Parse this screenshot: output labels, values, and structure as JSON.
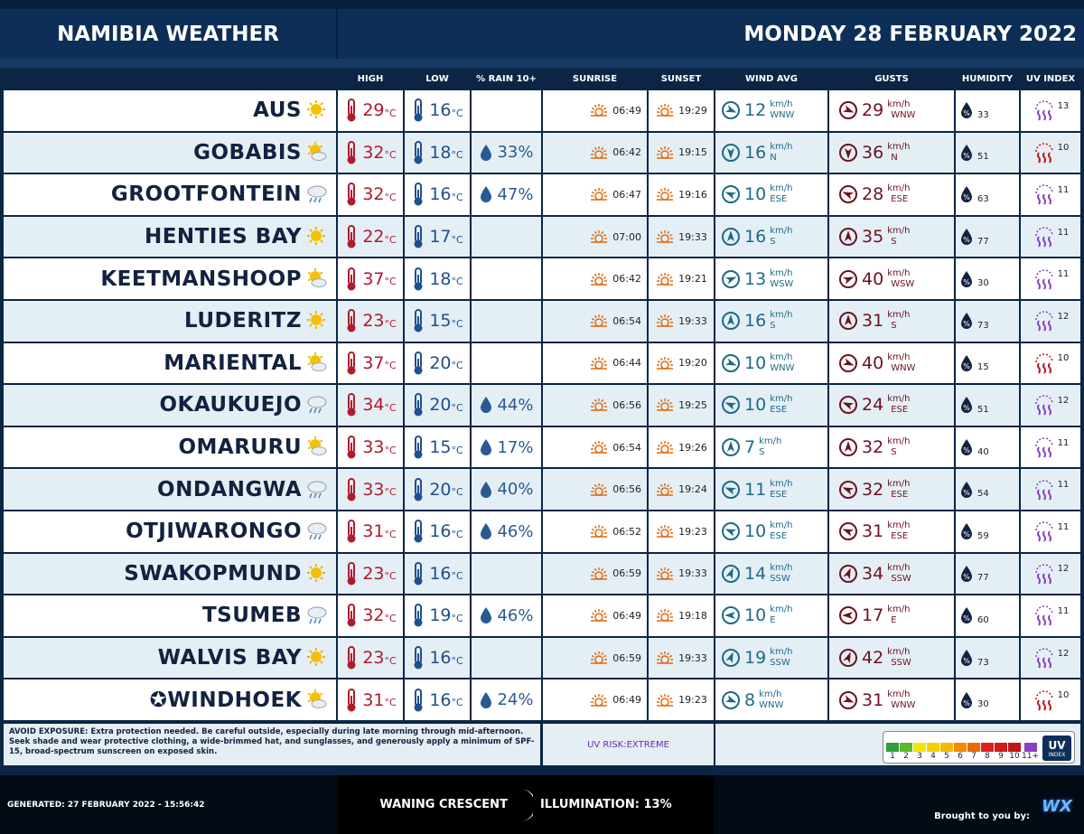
{
  "header": {
    "title": "NAMIBIA WEATHER",
    "date": "MONDAY 28 FEBRUARY 2022"
  },
  "units": {
    "temp": "°C",
    "speed": "km/h",
    "rain": "%"
  },
  "table": {
    "columns": [
      "HIGH",
      "LOW",
      "% RAIN 10+",
      "SUNRISE",
      "SUNSET",
      "WIND AVG",
      "GUSTS",
      "HUMIDITY",
      "UV INDEX"
    ],
    "rows": [
      {
        "city": "AUS",
        "icon": "sun",
        "high": 29,
        "low": 16,
        "sunrise": "06:49",
        "sunset": "19:29",
        "wind": 12,
        "wind_dir": "WNW",
        "gust": 29,
        "gust_dir": "WNW",
        "humidity": 33,
        "uv": 13
      },
      {
        "city": "GOBABIS",
        "icon": "partly",
        "high": 32,
        "low": 18,
        "rain": 33,
        "sunrise": "06:42",
        "sunset": "19:15",
        "wind": 16,
        "wind_dir": "N",
        "gust": 36,
        "gust_dir": "N",
        "humidity": 51,
        "uv": 10
      },
      {
        "city": "GROOTFONTEIN",
        "icon": "rain",
        "high": 32,
        "low": 16,
        "rain": 47,
        "sunrise": "06:47",
        "sunset": "19:16",
        "wind": 10,
        "wind_dir": "ESE",
        "gust": 28,
        "gust_dir": "ESE",
        "humidity": 63,
        "uv": 11
      },
      {
        "city": "HENTIES BAY",
        "icon": "sun",
        "high": 22,
        "low": 17,
        "sunrise": "07:00",
        "sunset": "19:33",
        "wind": 16,
        "wind_dir": "S",
        "gust": 35,
        "gust_dir": "S",
        "humidity": 77,
        "uv": 11
      },
      {
        "city": "KEETMANSHOOP",
        "icon": "partly",
        "high": 37,
        "low": 18,
        "sunrise": "06:42",
        "sunset": "19:21",
        "wind": 13,
        "wind_dir": "WSW",
        "gust": 40,
        "gust_dir": "WSW",
        "humidity": 30,
        "uv": 11
      },
      {
        "city": "LUDERITZ",
        "icon": "sun",
        "high": 23,
        "low": 15,
        "sunrise": "06:54",
        "sunset": "19:33",
        "wind": 16,
        "wind_dir": "S",
        "gust": 31,
        "gust_dir": "S",
        "humidity": 73,
        "uv": 12
      },
      {
        "city": "MARIENTAL",
        "icon": "partly",
        "high": 37,
        "low": 20,
        "sunrise": "06:44",
        "sunset": "19:20",
        "wind": 10,
        "wind_dir": "WNW",
        "gust": 40,
        "gust_dir": "WNW",
        "humidity": 15,
        "uv": 10
      },
      {
        "city": "OKAUKUEJO",
        "icon": "rain",
        "high": 34,
        "low": 20,
        "rain": 44,
        "sunrise": "06:56",
        "sunset": "19:25",
        "wind": 10,
        "wind_dir": "ESE",
        "gust": 24,
        "gust_dir": "ESE",
        "humidity": 51,
        "uv": 12
      },
      {
        "city": "OMARURU",
        "icon": "partly",
        "high": 33,
        "low": 15,
        "rain": 17,
        "sunrise": "06:54",
        "sunset": "19:26",
        "wind": 7,
        "wind_dir": "S",
        "gust": 32,
        "gust_dir": "S",
        "humidity": 40,
        "uv": 11
      },
      {
        "city": "ONDANGWA",
        "icon": "rain",
        "high": 33,
        "low": 20,
        "rain": 40,
        "sunrise": "06:56",
        "sunset": "19:24",
        "wind": 11,
        "wind_dir": "ESE",
        "gust": 32,
        "gust_dir": "ESE",
        "humidity": 54,
        "uv": 11
      },
      {
        "city": "OTJIWARONGO",
        "icon": "rain",
        "high": 31,
        "low": 16,
        "rain": 46,
        "sunrise": "06:52",
        "sunset": "19:23",
        "wind": 10,
        "wind_dir": "ESE",
        "gust": 31,
        "gust_dir": "ESE",
        "humidity": 59,
        "uv": 11
      },
      {
        "city": "SWAKOPMUND",
        "icon": "sun",
        "high": 23,
        "low": 16,
        "sunrise": "06:59",
        "sunset": "19:33",
        "wind": 14,
        "wind_dir": "SSW",
        "gust": 34,
        "gust_dir": "SSW",
        "humidity": 77,
        "uv": 12
      },
      {
        "city": "TSUMEB",
        "icon": "rain",
        "high": 32,
        "low": 19,
        "rain": 46,
        "sunrise": "06:49",
        "sunset": "19:18",
        "wind": 10,
        "wind_dir": "E",
        "gust": 17,
        "gust_dir": "E",
        "humidity": 60,
        "uv": 11
      },
      {
        "city": "WALVIS BAY",
        "icon": "sun",
        "high": 23,
        "low": 16,
        "sunrise": "06:59",
        "sunset": "19:33",
        "wind": 19,
        "wind_dir": "SSW",
        "gust": 42,
        "gust_dir": "SSW",
        "humidity": 73,
        "uv": 12
      },
      {
        "city": "✪WINDHOEK",
        "icon": "partly",
        "high": 31,
        "low": 16,
        "rain": 24,
        "sunrise": "06:49",
        "sunset": "19:23",
        "wind": 8,
        "wind_dir": "WNW",
        "gust": 31,
        "gust_dir": "WNW",
        "humidity": 30,
        "uv": 10
      }
    ]
  },
  "advice": {
    "lead": "AVOID EXPOSURE:",
    "text": "Extra protection needed. Be careful outside, especially during late morning through mid-afternoon. Seek shade and wear protective clothing, a wide-brimmed hat, and sunglasses, and generously apply a minimum of SPF-15, broad-spectrum sunscreen on exposed skin."
  },
  "uv_risk": "UV RISK:EXTREME",
  "uv_scale": [
    {
      "label": "1",
      "color": "#2f9e3a"
    },
    {
      "label": "2",
      "color": "#5cb82e"
    },
    {
      "label": "3",
      "color": "#f2e600"
    },
    {
      "label": "4",
      "color": "#f5d000"
    },
    {
      "label": "5",
      "color": "#f5b800"
    },
    {
      "label": "6",
      "color": "#f08a00"
    },
    {
      "label": "7",
      "color": "#eb6a00"
    },
    {
      "label": "8",
      "color": "#e02020"
    },
    {
      "label": "9",
      "color": "#d41a1a"
    },
    {
      "label": "10",
      "color": "#c41414"
    },
    {
      "label": "11+",
      "color": "#8a3fc4"
    }
  ],
  "uv_badge": {
    "top": "UV",
    "bottom": "INDEX"
  },
  "footer": {
    "generated": "GENERATED: 27 FEBRUARY 2022 - 15:56:42",
    "moon_phase": "WANING CRESCENT",
    "illumination": "ILLUMINATION: 13%",
    "brought": "Brought to you by:",
    "logo": "WX"
  }
}
